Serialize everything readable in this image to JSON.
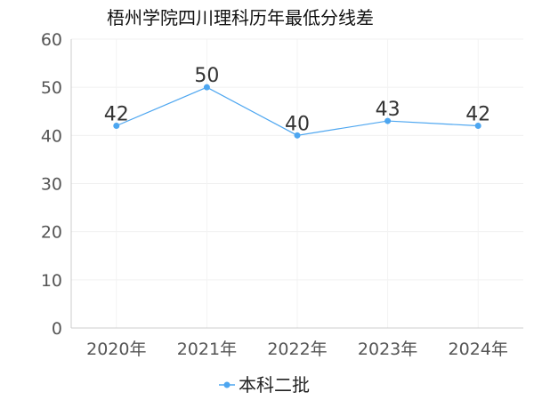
{
  "chart_data": {
    "type": "line",
    "title": "梧州学院四川理科历年最低分线差",
    "categories": [
      "2020年",
      "2021年",
      "2022年",
      "2023年",
      "2024年"
    ],
    "series": [
      {
        "name": "本科二批",
        "values": [
          42,
          50,
          40,
          43,
          42
        ],
        "color": "#4da6f0"
      }
    ],
    "ylim": [
      0,
      60
    ],
    "yticks": [
      "0",
      "10",
      "20",
      "30",
      "40",
      "50",
      "60"
    ],
    "grid": true,
    "legend": "bottom"
  }
}
